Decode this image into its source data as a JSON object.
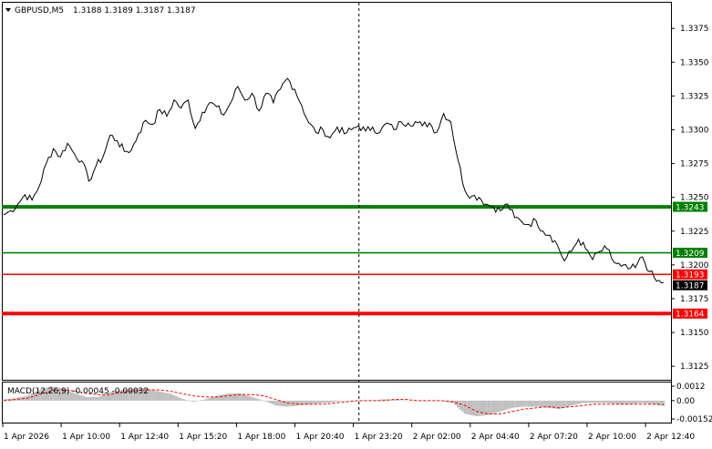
{
  "header": {
    "symbol_label": "GBPUSD,M5",
    "ohlc_values": "1.3188 1.3189 1.3187 1.3187"
  },
  "indicator": {
    "label": "MACD(12,26,9) -0.00045 -0.00032"
  },
  "colors": {
    "price_line": "#000000",
    "support_green": "#008000",
    "resistance_red": "#ff0000",
    "macd_histogram": "#c0c0c0",
    "macd_signal": "#ff0000",
    "grid": "#000000"
  },
  "chart_data": {
    "type": "line",
    "symbol": "GBPUSD",
    "timeframe": "M5",
    "x_ticks": [
      "1 Apr 2026",
      "1 Apr 10:00",
      "1 Apr 12:40",
      "1 Apr 15:20",
      "1 Apr 18:00",
      "1 Apr 20:40",
      "1 Apr 23:20",
      "2 Apr 02:00",
      "2 Apr 04:40",
      "2 Apr 07:20",
      "2 Apr 10:00",
      "2 Apr 12:40"
    ],
    "price_ticks": [
      "1.3375",
      "1.3350",
      "1.3325",
      "1.3300",
      "1.3275",
      "1.3250",
      "1.3225",
      "1.3200",
      "1.3175",
      "1.3150",
      "1.3125"
    ],
    "price_range": [
      1.3115,
      1.3394
    ],
    "grid": false,
    "price_series_keypoints": [
      [
        0,
        1.3237
      ],
      [
        3,
        1.324
      ],
      [
        6,
        1.3245
      ],
      [
        9,
        1.3252
      ],
      [
        12,
        1.3248
      ],
      [
        15,
        1.3258
      ],
      [
        18,
        1.3275
      ],
      [
        21,
        1.3286
      ],
      [
        24,
        1.328
      ],
      [
        27,
        1.329
      ],
      [
        30,
        1.3282
      ],
      [
        33,
        1.3277
      ],
      [
        36,
        1.3262
      ],
      [
        39,
        1.3273
      ],
      [
        42,
        1.328
      ],
      [
        45,
        1.3296
      ],
      [
        48,
        1.3292
      ],
      [
        51,
        1.3284
      ],
      [
        54,
        1.3285
      ],
      [
        57,
        1.3297
      ],
      [
        60,
        1.3307
      ],
      [
        63,
        1.3304
      ],
      [
        66,
        1.3315
      ],
      [
        69,
        1.331
      ],
      [
        72,
        1.3322
      ],
      [
        75,
        1.3316
      ],
      [
        78,
        1.3322
      ],
      [
        81,
        1.3301
      ],
      [
        84,
        1.3313
      ],
      [
        87,
        1.332
      ],
      [
        90,
        1.3317
      ],
      [
        93,
        1.3311
      ],
      [
        96,
        1.332
      ],
      [
        99,
        1.3332
      ],
      [
        102,
        1.3322
      ],
      [
        105,
        1.3327
      ],
      [
        108,
        1.3314
      ],
      [
        111,
        1.3327
      ],
      [
        114,
        1.332
      ],
      [
        117,
        1.333
      ],
      [
        120,
        1.3338
      ],
      [
        123,
        1.333
      ],
      [
        126,
        1.3318
      ],
      [
        129,
        1.3305
      ],
      [
        132,
        1.3298
      ],
      [
        135,
        1.33
      ],
      [
        138,
        1.3294
      ],
      [
        141,
        1.3302
      ],
      [
        144,
        1.3297
      ],
      [
        147,
        1.33
      ],
      [
        150,
        1.3303
      ],
      [
        153,
        1.3299
      ],
      [
        156,
        1.3302
      ],
      [
        159,
        1.3298
      ],
      [
        162,
        1.3305
      ],
      [
        165,
        1.33
      ],
      [
        168,
        1.3306
      ],
      [
        171,
        1.3305
      ],
      [
        174,
        1.3306
      ],
      [
        177,
        1.3303
      ],
      [
        180,
        1.3305
      ],
      [
        183,
        1.3298
      ],
      [
        186,
        1.3312
      ],
      [
        189,
        1.3306
      ],
      [
        192,
        1.3278
      ],
      [
        195,
        1.3255
      ],
      [
        198,
        1.3251
      ],
      [
        201,
        1.325
      ],
      [
        204,
        1.3245
      ],
      [
        207,
        1.3243
      ],
      [
        210,
        1.324
      ],
      [
        213,
        1.3245
      ],
      [
        216,
        1.3235
      ],
      [
        219,
        1.3232
      ],
      [
        222,
        1.323
      ],
      [
        225,
        1.3233
      ],
      [
        228,
        1.3225
      ],
      [
        231,
        1.3222
      ],
      [
        234,
        1.3215
      ],
      [
        237,
        1.3203
      ],
      [
        240,
        1.321
      ],
      [
        243,
        1.3219
      ],
      [
        246,
        1.3212
      ],
      [
        249,
        1.3204
      ],
      [
        252,
        1.321
      ],
      [
        255,
        1.3212
      ],
      [
        258,
        1.3202
      ],
      [
        261,
        1.3199
      ],
      [
        264,
        1.3197
      ],
      [
        267,
        1.3198
      ],
      [
        270,
        1.3206
      ],
      [
        273,
        1.3195
      ],
      [
        276,
        1.3188
      ],
      [
        279,
        1.3187
      ]
    ],
    "levels": [
      {
        "value": 1.3243,
        "label": "1.3243",
        "color": "#008000",
        "weight": "thick"
      },
      {
        "value": 1.3209,
        "label": "1.3209",
        "color": "#008000",
        "weight": "thin"
      },
      {
        "value": 1.3193,
        "label": "1.3193",
        "color": "#ff0000",
        "weight": "thin"
      },
      {
        "value": 1.3164,
        "label": "1.3164",
        "color": "#ff0000",
        "weight": "thick"
      }
    ],
    "current_price": {
      "value": 1.3187,
      "label": "1.3187"
    },
    "period_separator_index": 150,
    "macd": {
      "ticks": [
        "0.0012",
        "0.00",
        "-0.00152"
      ],
      "range": [
        -0.00152,
        0.0012
      ],
      "histogram": [
        [
          0,
          0.0001
        ],
        [
          5,
          0.0002
        ],
        [
          10,
          0.0004
        ],
        [
          15,
          0.0009
        ],
        [
          20,
          0.0012
        ],
        [
          25,
          0.001
        ],
        [
          30,
          0.0006
        ],
        [
          35,
          0.0003
        ],
        [
          40,
          0.0003
        ],
        [
          45,
          0.0007
        ],
        [
          50,
          0.0009
        ],
        [
          55,
          0.001
        ],
        [
          60,
          0.001
        ],
        [
          65,
          0.0008
        ],
        [
          70,
          0.0006
        ],
        [
          75,
          0.0002
        ],
        [
          80,
          -0.0001
        ],
        [
          85,
          0.0001
        ],
        [
          90,
          0.0004
        ],
        [
          95,
          0.0006
        ],
        [
          100,
          0.0006
        ],
        [
          105,
          0.0003
        ],
        [
          110,
          0.0
        ],
        [
          115,
          -0.0004
        ],
        [
          120,
          -0.0005
        ],
        [
          125,
          -0.0004
        ],
        [
          130,
          -0.0003
        ],
        [
          135,
          -0.0002
        ],
        [
          140,
          -0.0001
        ],
        [
          145,
          0.0
        ],
        [
          150,
          0.0
        ],
        [
          155,
          0.0
        ],
        [
          160,
          0.0001
        ],
        [
          165,
          0.0001
        ],
        [
          170,
          0.0
        ],
        [
          175,
          0.0
        ],
        [
          180,
          0.0
        ],
        [
          185,
          0.0
        ],
        [
          190,
          -0.0002
        ],
        [
          195,
          -0.0011
        ],
        [
          200,
          -0.0013
        ],
        [
          205,
          -0.0012
        ],
        [
          210,
          -0.0009
        ],
        [
          215,
          -0.0006
        ],
        [
          220,
          -0.0005
        ],
        [
          225,
          -0.0005
        ],
        [
          230,
          -0.0006
        ],
        [
          235,
          -0.0007
        ],
        [
          240,
          -0.0004
        ],
        [
          245,
          -0.0002
        ],
        [
          250,
          -0.0002
        ],
        [
          255,
          -0.0002
        ],
        [
          260,
          -0.0003
        ],
        [
          265,
          -0.0003
        ],
        [
          270,
          -0.0002
        ],
        [
          275,
          -0.0003
        ],
        [
          279,
          -0.00045
        ]
      ],
      "signal": [
        [
          0,
          0.0
        ],
        [
          5,
          0.0001
        ],
        [
          10,
          0.0002
        ],
        [
          15,
          0.0005
        ],
        [
          20,
          0.0008
        ],
        [
          25,
          0.0009
        ],
        [
          30,
          0.0008
        ],
        [
          35,
          0.0006
        ],
        [
          40,
          0.0005
        ],
        [
          45,
          0.0005
        ],
        [
          50,
          0.0007
        ],
        [
          55,
          0.0008
        ],
        [
          60,
          0.0009
        ],
        [
          65,
          0.0009
        ],
        [
          70,
          0.0008
        ],
        [
          75,
          0.0006
        ],
        [
          80,
          0.0004
        ],
        [
          85,
          0.0003
        ],
        [
          90,
          0.0003
        ],
        [
          95,
          0.0004
        ],
        [
          100,
          0.0005
        ],
        [
          105,
          0.0005
        ],
        [
          110,
          0.0004
        ],
        [
          115,
          0.0001
        ],
        [
          120,
          -0.0002
        ],
        [
          125,
          -0.0003
        ],
        [
          130,
          -0.0003
        ],
        [
          135,
          -0.0003
        ],
        [
          140,
          -0.0002
        ],
        [
          145,
          -0.0001
        ],
        [
          150,
          0.0
        ],
        [
          155,
          0.0
        ],
        [
          160,
          0.0
        ],
        [
          165,
          0.0001
        ],
        [
          170,
          0.0001
        ],
        [
          175,
          0.0
        ],
        [
          180,
          0.0
        ],
        [
          185,
          0.0
        ],
        [
          190,
          -0.0001
        ],
        [
          195,
          -0.0004
        ],
        [
          200,
          -0.0009
        ],
        [
          205,
          -0.0011
        ],
        [
          210,
          -0.0011
        ],
        [
          215,
          -0.0009
        ],
        [
          220,
          -0.0007
        ],
        [
          225,
          -0.0006
        ],
        [
          230,
          -0.0005
        ],
        [
          235,
          -0.0006
        ],
        [
          240,
          -0.0005
        ],
        [
          245,
          -0.0004
        ],
        [
          250,
          -0.0003
        ],
        [
          255,
          -0.0003
        ],
        [
          260,
          -0.0003
        ],
        [
          265,
          -0.0003
        ],
        [
          270,
          -0.0003
        ],
        [
          275,
          -0.0003
        ],
        [
          279,
          -0.00032
        ]
      ]
    }
  }
}
